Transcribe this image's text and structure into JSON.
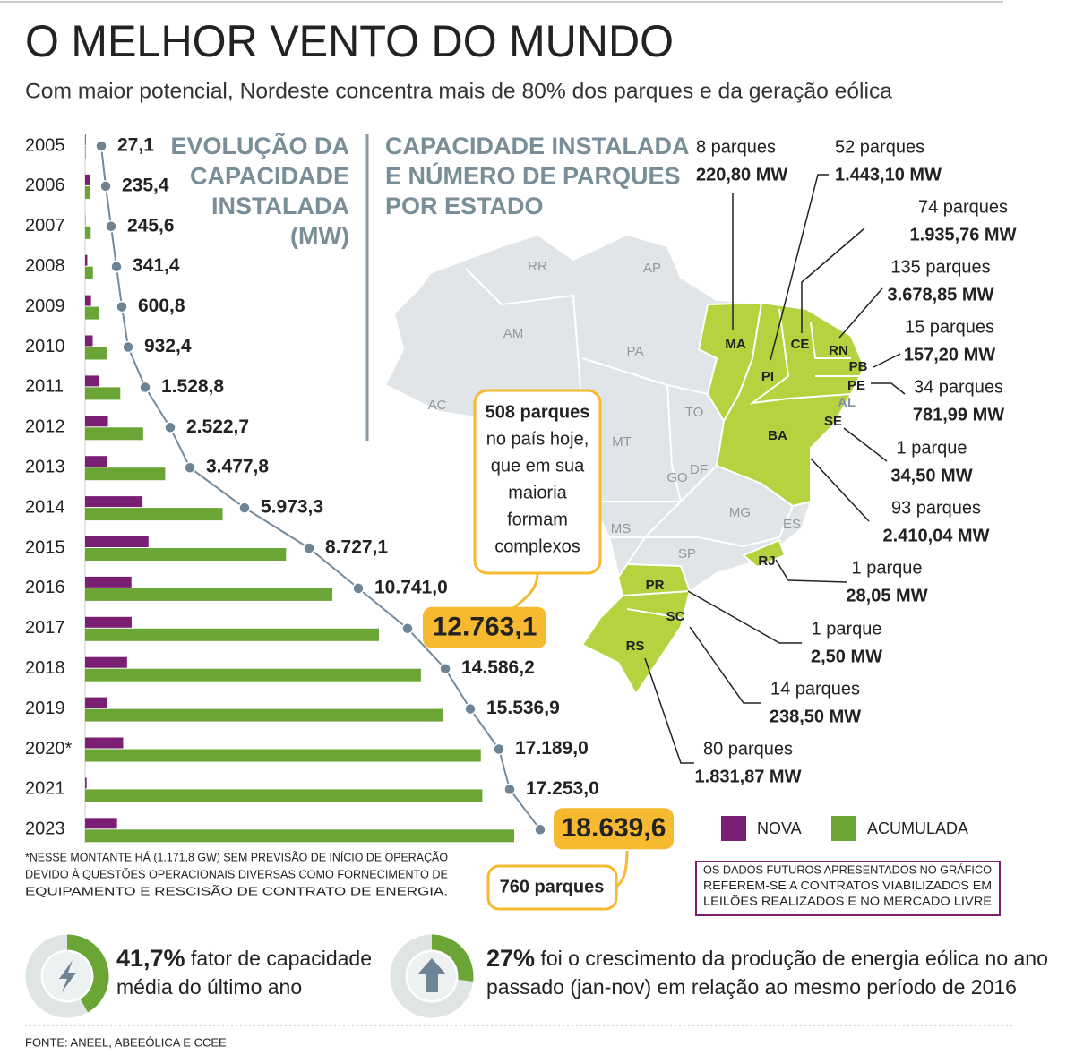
{
  "chart_data": {
    "type": "bar",
    "title": "O MELHOR VENTO DO MUNDO",
    "subtitle": "Com maior potencial, Nordeste concentra mais de 80% dos parques e da geração eólica",
    "chart_label_lines": [
      "EVOLUÇÃO DA",
      "CAPACIDADE",
      "INSTALADA",
      "(MW)"
    ],
    "categories": [
      "2005",
      "2006",
      "2007",
      "2008",
      "2009",
      "2010",
      "2011",
      "2012",
      "2013",
      "2014",
      "2015",
      "2016",
      "2017",
      "2018",
      "2019",
      "2020*",
      "2021",
      "2023"
    ],
    "series": [
      {
        "name": "NOVA",
        "color": "#7b1f74",
        "values": [
          27.1,
          208.3,
          10.2,
          95.8,
          259.4,
          331.6,
          596.4,
          993.9,
          955.1,
          2495.5,
          2753.8,
          2013.9,
          2022.1,
          1823.1,
          950.7,
          1652.1,
          64.0,
          1386.6
        ]
      },
      {
        "name": "ACUMULADA",
        "color": "#6aa535",
        "values": [
          27.1,
          235.4,
          245.6,
          341.4,
          600.8,
          932.4,
          1528.8,
          2522.7,
          3477.8,
          5973.3,
          8727.1,
          10741.0,
          12763.1,
          14586.2,
          15536.9,
          17189.0,
          17253.0,
          18639.6
        ],
        "value_labels": [
          "27,1",
          "235,4",
          "245,6",
          "341,4",
          "600,8",
          "932,4",
          "1.528,8",
          "2.522,7",
          "3.477,8",
          "5.973,3",
          "8.727,1",
          "10.741,0",
          "12.763,1",
          "14.586,2",
          "15.536,9",
          "17.189,0",
          "17.253,0",
          "18.639,6"
        ]
      }
    ],
    "xlim": [
      0,
      20000
    ],
    "highlight_color": "#f6b92f",
    "callout_lines": [
      "508 parques",
      "no país hoje,",
      "que em sua",
      "maioria",
      "formam",
      "complexos"
    ],
    "total_label": "760 parques",
    "footnote_lines": [
      "*NESSE MONTANTE HÁ (1.171,8 GW) SEM PREVISÃO DE INÍCIO DE OPERAÇÃO",
      "DEVIDO À QUESTÕES OPERACIONAIS DIVERSAS COMO FORNECIMENTO DE",
      "EQUIPAMENTO E RESCISÃO DE CONTRATO DE ENERGIA."
    ]
  },
  "map": {
    "title_lines": [
      "CAPACIDADE INSTALADA",
      "E NÚMERO DE PARQUES",
      "POR ESTADO"
    ],
    "regions": [
      "RR",
      "AP",
      "AM",
      "PA",
      "AC",
      "TO",
      "MT",
      "GO",
      "DF",
      "MG",
      "MS",
      "SP",
      "ES",
      "AL"
    ],
    "states": [
      {
        "abbr": "MA",
        "parks": "8 parques",
        "mw": "220,80 MW"
      },
      {
        "abbr": "PI",
        "parks": "52 parques",
        "mw": "1.443,10 MW"
      },
      {
        "abbr": "CE",
        "parks": "74 parques",
        "mw": "1.935,76 MW"
      },
      {
        "abbr": "RN",
        "parks": "135 parques",
        "mw": "3.678,85 MW"
      },
      {
        "abbr": "PB",
        "parks": "15 parques",
        "mw": "157,20 MW"
      },
      {
        "abbr": "PE",
        "parks": "34 parques",
        "mw": "781,99 MW"
      },
      {
        "abbr": "SE",
        "parks": "1 parque",
        "mw": "34,50 MW"
      },
      {
        "abbr": "BA",
        "parks": "93 parques",
        "mw": "2.410,04 MW"
      },
      {
        "abbr": "RJ",
        "parks": "1 parque",
        "mw": "28,05 MW"
      },
      {
        "abbr": "PR",
        "parks": "1 parque",
        "mw": "2,50 MW"
      },
      {
        "abbr": "SC",
        "parks": "14 parques",
        "mw": "238,50 MW"
      },
      {
        "abbr": "RS",
        "parks": "80 parques",
        "mw": "1.831,87 MW"
      }
    ],
    "note_lines": [
      "OS DADOS FUTUROS APRESENTADOS NO GRÁFICO",
      "REFEREM-SE A CONTRATOS VIABILIZADOS EM",
      "LEILÕES REALIZADOS E NO MERCADO LIVRE"
    ]
  },
  "stats": [
    {
      "value": 41.7,
      "label": "41,7%",
      "text_lines": [
        "fator de capacidade",
        "média do último ano"
      ]
    },
    {
      "value": 27,
      "label": "27%",
      "text_lines": [
        "foi o crescimento da produção de energia eólica no ano",
        "passado (jan-nov) em relação ao mesmo período de 2016"
      ]
    }
  ],
  "source": "FONTE: ANEEL, ABEEÓLICA E CCEE"
}
